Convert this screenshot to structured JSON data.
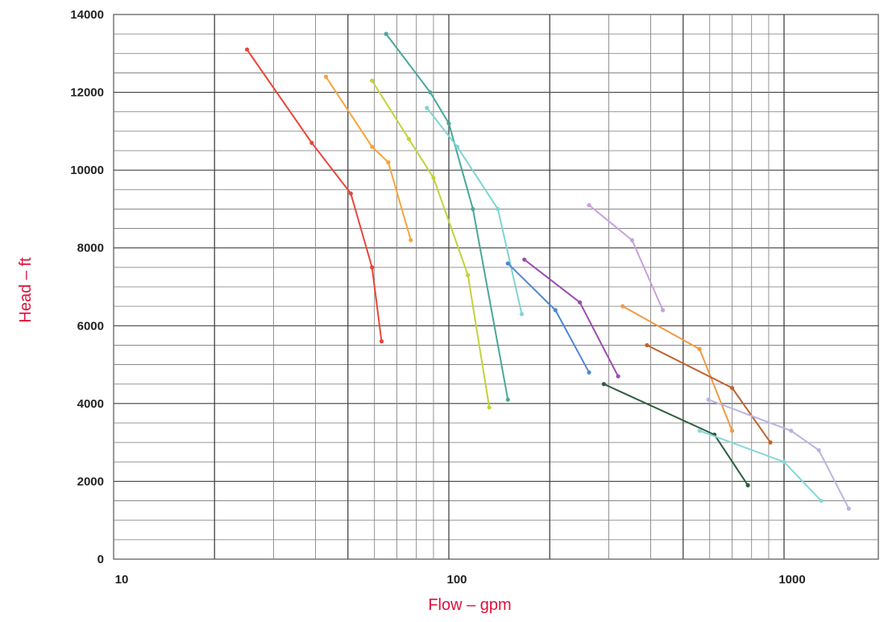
{
  "chart_data": {
    "type": "line",
    "title": "",
    "xlabel": "Flow – gpm",
    "ylabel": "Head – ft",
    "xscale": "log",
    "xlim": [
      10,
      1500
    ],
    "ylim": [
      0,
      14000
    ],
    "xticks": [
      10,
      100,
      1000
    ],
    "xtick_labels": [
      "10",
      "100",
      "1000"
    ],
    "yticks": [
      0,
      2000,
      4000,
      6000,
      8000,
      10000,
      12000,
      14000
    ],
    "ytick_labels": [
      "0",
      "2000",
      "4000",
      "6000",
      "8000",
      "10000",
      "12000",
      "14000"
    ],
    "grid": true,
    "legend": "none",
    "series": [
      {
        "color": "#e8463a",
        "points": [
          [
            25,
            13100
          ],
          [
            39,
            10700
          ],
          [
            51,
            9400
          ],
          [
            59,
            7500
          ],
          [
            63,
            5600
          ]
        ]
      },
      {
        "color": "#f7a43c",
        "points": [
          [
            43,
            12400
          ],
          [
            59,
            10600
          ],
          [
            66,
            10200
          ],
          [
            77,
            8200
          ]
        ]
      },
      {
        "color": "#c4d23c",
        "points": [
          [
            59,
            12300
          ],
          [
            76,
            10800
          ],
          [
            90,
            9800
          ],
          [
            114,
            7300
          ],
          [
            132,
            3900
          ]
        ]
      },
      {
        "color": "#4aa79a",
        "points": [
          [
            65,
            13500
          ],
          [
            88,
            12000
          ],
          [
            100,
            11200
          ],
          [
            118,
            9000
          ],
          [
            150,
            4100
          ]
        ]
      },
      {
        "color": "#7fd4d4",
        "points": [
          [
            86,
            11600
          ],
          [
            106,
            10600
          ],
          [
            140,
            9000
          ],
          [
            165,
            6300
          ]
        ]
      },
      {
        "color": "#4f86d6",
        "points": [
          [
            150,
            7600
          ],
          [
            208,
            6400
          ],
          [
            262,
            4800
          ]
        ]
      },
      {
        "color": "#9b4db0",
        "points": [
          [
            168,
            7700
          ],
          [
            246,
            6600
          ],
          [
            320,
            4700
          ]
        ]
      },
      {
        "color": "#c8a0dc",
        "points": [
          [
            262,
            9100
          ],
          [
            352,
            8200
          ],
          [
            435,
            6400
          ]
        ]
      },
      {
        "color": "#f09a45",
        "points": [
          [
            330,
            6500
          ],
          [
            560,
            5400
          ],
          [
            700,
            3300
          ]
        ]
      },
      {
        "color": "#c1622e",
        "points": [
          [
            390,
            5500
          ],
          [
            700,
            4400
          ],
          [
            910,
            3000
          ]
        ]
      },
      {
        "color": "#2c5e3e",
        "points": [
          [
            290,
            4500
          ],
          [
            620,
            3200
          ],
          [
            780,
            1900
          ]
        ]
      },
      {
        "color": "#88d7d7",
        "points": [
          [
            560,
            3300
          ],
          [
            1000,
            2500
          ],
          [
            1290,
            1500
          ]
        ]
      },
      {
        "color": "#b8b4e4",
        "points": [
          [
            595,
            4100
          ],
          [
            1050,
            3300
          ],
          [
            1270,
            2800
          ],
          [
            1560,
            1300
          ]
        ]
      }
    ]
  }
}
